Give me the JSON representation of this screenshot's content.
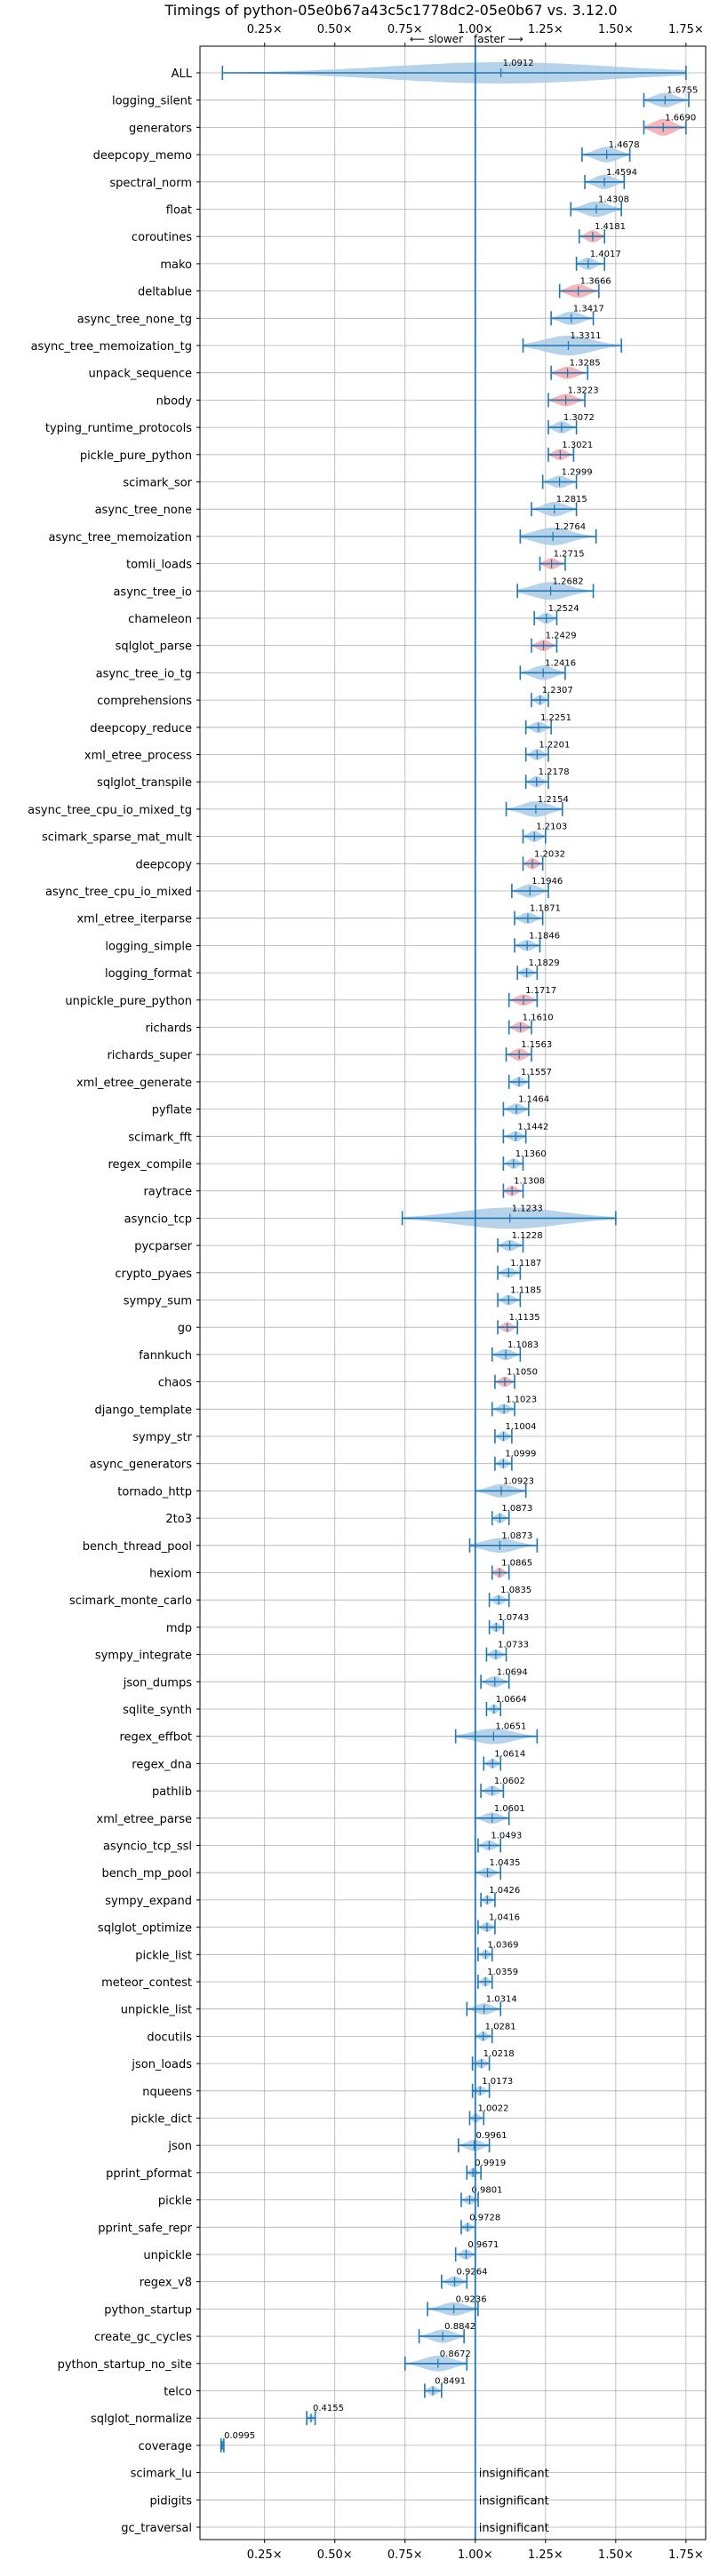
{
  "chart_data": {
    "type": "violin",
    "title": "Timings of python-05e0b67a43c5c1778dc2-05e0b67 vs. 3.12.0",
    "direction_labels": {
      "slower": "⟵ slower",
      "faster": "faster ⟶"
    },
    "x_tick_labels": [
      "0.25×",
      "0.50×",
      "0.75×",
      "1.00×",
      "1.25×",
      "1.50×",
      "1.75×"
    ],
    "x_ticks": [
      0.25,
      0.5,
      0.75,
      1.0,
      1.25,
      1.5,
      1.75
    ],
    "xlim": [
      0.02,
      1.82
    ],
    "reference_line": 1.0,
    "insignificant_label": "insignificant",
    "colors": {
      "normal": "#a9cbe6",
      "highlight": "#f4a9ad",
      "line": "#1f77b4",
      "grid": "#b0b0b0"
    },
    "benchmarks": [
      {
        "name": "ALL",
        "value": 1.0912,
        "label": "1.0912",
        "lo": 0.1,
        "hi": 1.75,
        "spread": 0.14,
        "color": "normal"
      },
      {
        "name": "logging_silent",
        "value": 1.6755,
        "label": "1.6755",
        "lo": 1.6,
        "hi": 1.76,
        "spread": 0.07,
        "color": "normal"
      },
      {
        "name": "generators",
        "value": 1.669,
        "label": "1.6690",
        "lo": 1.6,
        "hi": 1.75,
        "spread": 0.09,
        "color": "highlight"
      },
      {
        "name": "deepcopy_memo",
        "value": 1.4678,
        "label": "1.4678",
        "lo": 1.38,
        "hi": 1.55,
        "spread": 0.08,
        "color": "normal"
      },
      {
        "name": "spectral_norm",
        "value": 1.4594,
        "label": "1.4594",
        "lo": 1.39,
        "hi": 1.53,
        "spread": 0.07,
        "color": "normal"
      },
      {
        "name": "float",
        "value": 1.4308,
        "label": "1.4308",
        "lo": 1.34,
        "hi": 1.52,
        "spread": 0.08,
        "color": "normal"
      },
      {
        "name": "coroutines",
        "value": 1.4181,
        "label": "1.4181",
        "lo": 1.37,
        "hi": 1.46,
        "spread": 0.05,
        "color": "highlight"
      },
      {
        "name": "mako",
        "value": 1.4017,
        "label": "1.4017",
        "lo": 1.36,
        "hi": 1.46,
        "spread": 0.05,
        "color": "normal"
      },
      {
        "name": "deltablue",
        "value": 1.3666,
        "label": "1.3666",
        "lo": 1.3,
        "hi": 1.44,
        "spread": 0.06,
        "color": "highlight"
      },
      {
        "name": "async_tree_none_tg",
        "value": 1.3417,
        "label": "1.3417",
        "lo": 1.27,
        "hi": 1.42,
        "spread": 0.06,
        "color": "normal"
      },
      {
        "name": "async_tree_memoization_tg",
        "value": 1.3311,
        "label": "1.3311",
        "lo": 1.17,
        "hi": 1.52,
        "spread": 0.12,
        "color": "normal"
      },
      {
        "name": "unpack_sequence",
        "value": 1.3285,
        "label": "1.3285",
        "lo": 1.27,
        "hi": 1.4,
        "spread": 0.05,
        "color": "highlight"
      },
      {
        "name": "nbody",
        "value": 1.3223,
        "label": "1.3223",
        "lo": 1.26,
        "hi": 1.39,
        "spread": 0.05,
        "color": "highlight"
      },
      {
        "name": "typing_runtime_protocols",
        "value": 1.3072,
        "label": "1.3072",
        "lo": 1.26,
        "hi": 1.36,
        "spread": 0.05,
        "color": "normal"
      },
      {
        "name": "pickle_pure_python",
        "value": 1.3021,
        "label": "1.3021",
        "lo": 1.26,
        "hi": 1.35,
        "spread": 0.04,
        "color": "highlight"
      },
      {
        "name": "scimark_sor",
        "value": 1.2999,
        "label": "1.2999",
        "lo": 1.24,
        "hi": 1.36,
        "spread": 0.05,
        "color": "normal"
      },
      {
        "name": "async_tree_none",
        "value": 1.2815,
        "label": "1.2815",
        "lo": 1.2,
        "hi": 1.36,
        "spread": 0.07,
        "color": "normal"
      },
      {
        "name": "async_tree_memoization",
        "value": 1.2764,
        "label": "1.2764",
        "lo": 1.16,
        "hi": 1.43,
        "spread": 0.1,
        "color": "normal"
      },
      {
        "name": "tomli_loads",
        "value": 1.2715,
        "label": "1.2715",
        "lo": 1.23,
        "hi": 1.32,
        "spread": 0.04,
        "color": "highlight"
      },
      {
        "name": "async_tree_io",
        "value": 1.2682,
        "label": "1.2682",
        "lo": 1.15,
        "hi": 1.42,
        "spread": 0.1,
        "color": "normal"
      },
      {
        "name": "chameleon",
        "value": 1.2524,
        "label": "1.2524",
        "lo": 1.21,
        "hi": 1.29,
        "spread": 0.04,
        "color": "normal"
      },
      {
        "name": "sqlglot_parse",
        "value": 1.2429,
        "label": "1.2429",
        "lo": 1.2,
        "hi": 1.29,
        "spread": 0.04,
        "color": "highlight"
      },
      {
        "name": "async_tree_io_tg",
        "value": 1.2416,
        "label": "1.2416",
        "lo": 1.16,
        "hi": 1.32,
        "spread": 0.07,
        "color": "normal"
      },
      {
        "name": "comprehensions",
        "value": 1.2307,
        "label": "1.2307",
        "lo": 1.2,
        "hi": 1.26,
        "spread": 0.03,
        "color": "normal"
      },
      {
        "name": "deepcopy_reduce",
        "value": 1.2251,
        "label": "1.2251",
        "lo": 1.18,
        "hi": 1.27,
        "spread": 0.04,
        "color": "normal"
      },
      {
        "name": "xml_etree_process",
        "value": 1.2201,
        "label": "1.2201",
        "lo": 1.18,
        "hi": 1.26,
        "spread": 0.04,
        "color": "normal"
      },
      {
        "name": "sqlglot_transpile",
        "value": 1.2178,
        "label": "1.2178",
        "lo": 1.18,
        "hi": 1.26,
        "spread": 0.04,
        "color": "normal"
      },
      {
        "name": "async_tree_cpu_io_mixed_tg",
        "value": 1.2154,
        "label": "1.2154",
        "lo": 1.11,
        "hi": 1.31,
        "spread": 0.08,
        "color": "normal"
      },
      {
        "name": "scimark_sparse_mat_mult",
        "value": 1.2103,
        "label": "1.2103",
        "lo": 1.17,
        "hi": 1.25,
        "spread": 0.04,
        "color": "normal"
      },
      {
        "name": "deepcopy",
        "value": 1.2032,
        "label": "1.2032",
        "lo": 1.17,
        "hi": 1.24,
        "spread": 0.04,
        "color": "highlight"
      },
      {
        "name": "async_tree_cpu_io_mixed",
        "value": 1.1946,
        "label": "1.1946",
        "lo": 1.13,
        "hi": 1.26,
        "spread": 0.06,
        "color": "normal"
      },
      {
        "name": "xml_etree_iterparse",
        "value": 1.1871,
        "label": "1.1871",
        "lo": 1.14,
        "hi": 1.24,
        "spread": 0.04,
        "color": "normal"
      },
      {
        "name": "logging_simple",
        "value": 1.1846,
        "label": "1.1846",
        "lo": 1.14,
        "hi": 1.23,
        "spread": 0.04,
        "color": "normal"
      },
      {
        "name": "logging_format",
        "value": 1.1829,
        "label": "1.1829",
        "lo": 1.15,
        "hi": 1.22,
        "spread": 0.03,
        "color": "normal"
      },
      {
        "name": "unpickle_pure_python",
        "value": 1.1717,
        "label": "1.1717",
        "lo": 1.12,
        "hi": 1.22,
        "spread": 0.04,
        "color": "highlight"
      },
      {
        "name": "richards",
        "value": 1.161,
        "label": "1.1610",
        "lo": 1.12,
        "hi": 1.2,
        "spread": 0.04,
        "color": "highlight"
      },
      {
        "name": "richards_super",
        "value": 1.1563,
        "label": "1.1563",
        "lo": 1.11,
        "hi": 1.2,
        "spread": 0.05,
        "color": "highlight"
      },
      {
        "name": "xml_etree_generate",
        "value": 1.1557,
        "label": "1.1557",
        "lo": 1.12,
        "hi": 1.19,
        "spread": 0.03,
        "color": "normal"
      },
      {
        "name": "pyflate",
        "value": 1.1464,
        "label": "1.1464",
        "lo": 1.1,
        "hi": 1.19,
        "spread": 0.04,
        "color": "normal"
      },
      {
        "name": "scimark_fft",
        "value": 1.1442,
        "label": "1.1442",
        "lo": 1.1,
        "hi": 1.18,
        "spread": 0.03,
        "color": "normal"
      },
      {
        "name": "regex_compile",
        "value": 1.136,
        "label": "1.1360",
        "lo": 1.1,
        "hi": 1.17,
        "spread": 0.03,
        "color": "normal"
      },
      {
        "name": "raytrace",
        "value": 1.1308,
        "label": "1.1308",
        "lo": 1.1,
        "hi": 1.17,
        "spread": 0.03,
        "color": "highlight"
      },
      {
        "name": "asyncio_tcp",
        "value": 1.1233,
        "label": "1.1233",
        "lo": 0.74,
        "hi": 1.5,
        "spread": 0.16,
        "color": "normal"
      },
      {
        "name": "pycparser",
        "value": 1.1228,
        "label": "1.1228",
        "lo": 1.08,
        "hi": 1.17,
        "spread": 0.04,
        "color": "normal"
      },
      {
        "name": "crypto_pyaes",
        "value": 1.1187,
        "label": "1.1187",
        "lo": 1.08,
        "hi": 1.16,
        "spread": 0.03,
        "color": "normal"
      },
      {
        "name": "sympy_sum",
        "value": 1.1185,
        "label": "1.1185",
        "lo": 1.08,
        "hi": 1.16,
        "spread": 0.03,
        "color": "normal"
      },
      {
        "name": "go",
        "value": 1.1135,
        "label": "1.1135",
        "lo": 1.08,
        "hi": 1.15,
        "spread": 0.03,
        "color": "highlight"
      },
      {
        "name": "fannkuch",
        "value": 1.1083,
        "label": "1.1083",
        "lo": 1.06,
        "hi": 1.16,
        "spread": 0.04,
        "color": "normal"
      },
      {
        "name": "chaos",
        "value": 1.105,
        "label": "1.1050",
        "lo": 1.07,
        "hi": 1.14,
        "spread": 0.03,
        "color": "highlight"
      },
      {
        "name": "django_template",
        "value": 1.1023,
        "label": "1.1023",
        "lo": 1.06,
        "hi": 1.14,
        "spread": 0.03,
        "color": "normal"
      },
      {
        "name": "sympy_str",
        "value": 1.1004,
        "label": "1.1004",
        "lo": 1.07,
        "hi": 1.13,
        "spread": 0.03,
        "color": "normal"
      },
      {
        "name": "async_generators",
        "value": 1.0999,
        "label": "1.0999",
        "lo": 1.07,
        "hi": 1.13,
        "spread": 0.03,
        "color": "normal"
      },
      {
        "name": "tornado_http",
        "value": 1.0923,
        "label": "1.0923",
        "lo": 1.0,
        "hi": 1.18,
        "spread": 0.06,
        "color": "normal"
      },
      {
        "name": "2to3",
        "value": 1.0873,
        "label": "1.0873",
        "lo": 1.06,
        "hi": 1.12,
        "spread": 0.03,
        "color": "normal"
      },
      {
        "name": "bench_thread_pool",
        "value": 1.0873,
        "label": "1.0873",
        "lo": 0.98,
        "hi": 1.22,
        "spread": 0.07,
        "color": "normal"
      },
      {
        "name": "hexiom",
        "value": 1.0865,
        "label": "1.0865",
        "lo": 1.06,
        "hi": 1.12,
        "spread": 0.03,
        "color": "highlight"
      },
      {
        "name": "scimark_monte_carlo",
        "value": 1.0835,
        "label": "1.0835",
        "lo": 1.05,
        "hi": 1.12,
        "spread": 0.03,
        "color": "normal"
      },
      {
        "name": "mdp",
        "value": 1.0743,
        "label": "1.0743",
        "lo": 1.05,
        "hi": 1.1,
        "spread": 0.025,
        "color": "normal"
      },
      {
        "name": "sympy_integrate",
        "value": 1.0733,
        "label": "1.0733",
        "lo": 1.04,
        "hi": 1.11,
        "spread": 0.03,
        "color": "normal"
      },
      {
        "name": "json_dumps",
        "value": 1.0694,
        "label": "1.0694",
        "lo": 1.02,
        "hi": 1.12,
        "spread": 0.04,
        "color": "normal"
      },
      {
        "name": "sqlite_synth",
        "value": 1.0664,
        "label": "1.0664",
        "lo": 1.04,
        "hi": 1.09,
        "spread": 0.025,
        "color": "normal"
      },
      {
        "name": "regex_effbot",
        "value": 1.0651,
        "label": "1.0651",
        "lo": 0.93,
        "hi": 1.22,
        "spread": 0.08,
        "color": "normal"
      },
      {
        "name": "regex_dna",
        "value": 1.0614,
        "label": "1.0614",
        "lo": 1.03,
        "hi": 1.09,
        "spread": 0.025,
        "color": "normal"
      },
      {
        "name": "pathlib",
        "value": 1.0602,
        "label": "1.0602",
        "lo": 1.02,
        "hi": 1.1,
        "spread": 0.03,
        "color": "normal"
      },
      {
        "name": "xml_etree_parse",
        "value": 1.0601,
        "label": "1.0601",
        "lo": 1.0,
        "hi": 1.12,
        "spread": 0.04,
        "color": "normal"
      },
      {
        "name": "asyncio_tcp_ssl",
        "value": 1.0493,
        "label": "1.0493",
        "lo": 1.01,
        "hi": 1.09,
        "spread": 0.03,
        "color": "normal"
      },
      {
        "name": "bench_mp_pool",
        "value": 1.0435,
        "label": "1.0435",
        "lo": 1.0,
        "hi": 1.09,
        "spread": 0.03,
        "color": "normal"
      },
      {
        "name": "sympy_expand",
        "value": 1.0426,
        "label": "1.0426",
        "lo": 1.02,
        "hi": 1.07,
        "spread": 0.025,
        "color": "normal"
      },
      {
        "name": "sqlglot_optimize",
        "value": 1.0416,
        "label": "1.0416",
        "lo": 1.01,
        "hi": 1.07,
        "spread": 0.025,
        "color": "normal"
      },
      {
        "name": "pickle_list",
        "value": 1.0369,
        "label": "1.0369",
        "lo": 1.01,
        "hi": 1.06,
        "spread": 0.025,
        "color": "normal"
      },
      {
        "name": "meteor_contest",
        "value": 1.0359,
        "label": "1.0359",
        "lo": 1.01,
        "hi": 1.06,
        "spread": 0.025,
        "color": "normal"
      },
      {
        "name": "unpickle_list",
        "value": 1.0314,
        "label": "1.0314",
        "lo": 0.97,
        "hi": 1.09,
        "spread": 0.04,
        "color": "normal"
      },
      {
        "name": "docutils",
        "value": 1.0281,
        "label": "1.0281",
        "lo": 1.0,
        "hi": 1.06,
        "spread": 0.025,
        "color": "normal"
      },
      {
        "name": "json_loads",
        "value": 1.0218,
        "label": "1.0218",
        "lo": 0.99,
        "hi": 1.05,
        "spread": 0.025,
        "color": "normal"
      },
      {
        "name": "nqueens",
        "value": 1.0173,
        "label": "1.0173",
        "lo": 0.99,
        "hi": 1.05,
        "spread": 0.025,
        "color": "normal"
      },
      {
        "name": "pickle_dict",
        "value": 1.0022,
        "label": "1.0022",
        "lo": 0.98,
        "hi": 1.03,
        "spread": 0.02,
        "color": "normal"
      },
      {
        "name": "json",
        "value": 0.9961,
        "label": "0.9961",
        "lo": 0.94,
        "hi": 1.05,
        "spread": 0.04,
        "color": "normal"
      },
      {
        "name": "pprint_pformat",
        "value": 0.9919,
        "label": "0.9919",
        "lo": 0.97,
        "hi": 1.02,
        "spread": 0.02,
        "color": "normal"
      },
      {
        "name": "pickle",
        "value": 0.9801,
        "label": "0.9801",
        "lo": 0.95,
        "hi": 1.01,
        "spread": 0.025,
        "color": "normal"
      },
      {
        "name": "pprint_safe_repr",
        "value": 0.9728,
        "label": "0.9728",
        "lo": 0.95,
        "hi": 1.0,
        "spread": 0.02,
        "color": "normal"
      },
      {
        "name": "unpickle",
        "value": 0.9671,
        "label": "0.9671",
        "lo": 0.93,
        "hi": 1.0,
        "spread": 0.03,
        "color": "normal"
      },
      {
        "name": "regex_v8",
        "value": 0.9264,
        "label": "0.9264",
        "lo": 0.88,
        "hi": 0.97,
        "spread": 0.035,
        "color": "normal"
      },
      {
        "name": "python_startup",
        "value": 0.9236,
        "label": "0.9236",
        "lo": 0.83,
        "hi": 1.01,
        "spread": 0.06,
        "color": "normal"
      },
      {
        "name": "create_gc_cycles",
        "value": 0.8842,
        "label": "0.8842",
        "lo": 0.8,
        "hi": 0.96,
        "spread": 0.06,
        "color": "normal"
      },
      {
        "name": "python_startup_no_site",
        "value": 0.8672,
        "label": "0.8672",
        "lo": 0.75,
        "hi": 0.97,
        "spread": 0.08,
        "color": "normal"
      },
      {
        "name": "telco",
        "value": 0.8491,
        "label": "0.8491",
        "lo": 0.82,
        "hi": 0.88,
        "spread": 0.025,
        "color": "normal"
      },
      {
        "name": "sqlglot_normalize",
        "value": 0.4155,
        "label": "0.4155",
        "lo": 0.4,
        "hi": 0.43,
        "spread": 0.012,
        "color": "normal"
      },
      {
        "name": "coverage",
        "value": 0.0995,
        "label": "0.0995",
        "lo": 0.095,
        "hi": 0.105,
        "spread": 0.006,
        "color": "normal"
      },
      {
        "name": "scimark_lu",
        "insignificant": true
      },
      {
        "name": "pidigits",
        "insignificant": true
      },
      {
        "name": "gc_traversal",
        "insignificant": true
      }
    ]
  }
}
